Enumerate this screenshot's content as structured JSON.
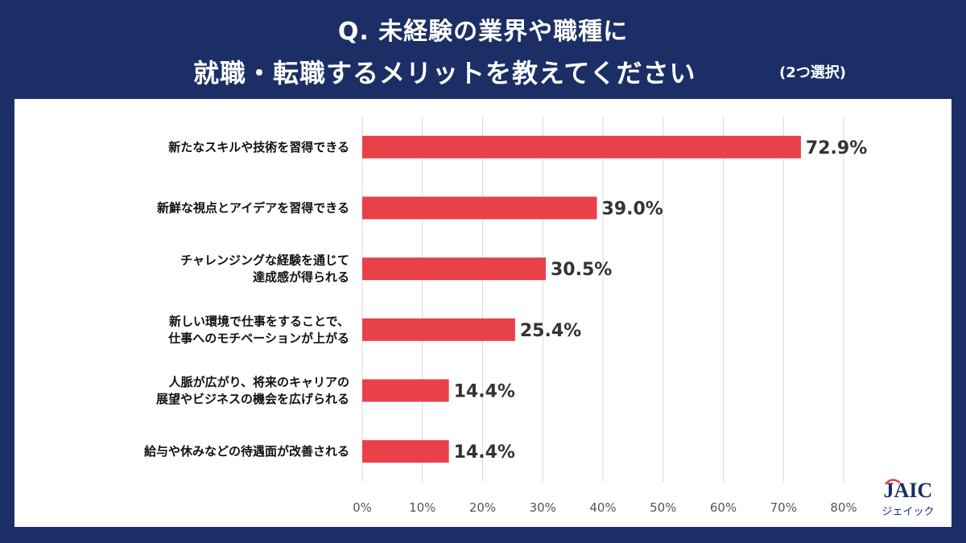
{
  "header": {
    "title_line1": "Q. 未経験の業界や職種に",
    "title_line2": "就職・転職するメリットを教えてください",
    "title_note": "(2つ選択)"
  },
  "chart_data": {
    "type": "bar",
    "orientation": "horizontal",
    "categories": [
      [
        "新たなスキルや技術を習得できる"
      ],
      [
        "新鮮な視点とアイデアを習得できる"
      ],
      [
        "チャレンジングな経験を通じて",
        "達成感が得られる"
      ],
      [
        "新しい環境で仕事をすることで、",
        "仕事へのモチベーションが上がる"
      ],
      [
        "人脈が広がり、将来のキャリアの",
        "展望やビジネスの機会を広げられる"
      ],
      [
        "給与や休みなどの待遇面が改善される"
      ]
    ],
    "values": [
      72.9,
      39.0,
      30.5,
      25.4,
      14.4,
      14.4
    ],
    "value_labels": [
      "72.9%",
      "39.0%",
      "30.5%",
      "25.4%",
      "14.4%",
      "14.4%"
    ],
    "xlim": [
      0,
      80
    ],
    "ticks": [
      0,
      10,
      20,
      30,
      40,
      50,
      60,
      70,
      80
    ],
    "tick_labels": [
      "0%",
      "10%",
      "20%",
      "30%",
      "40%",
      "50%",
      "60%",
      "70%",
      "80%"
    ],
    "grid": true,
    "bar_color": "#e8414a"
  },
  "logo": {
    "text_top": "JAIC",
    "text_bottom": "ジェイック",
    "color": "#1b2f66",
    "accent": "#e8414a"
  }
}
